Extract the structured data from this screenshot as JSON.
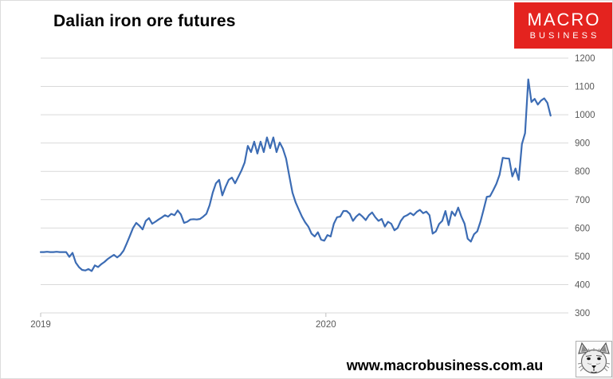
{
  "header": {
    "title": "Dalian iron ore futures"
  },
  "logo": {
    "line1": "MACRO",
    "line2": "BUSINESS"
  },
  "footer": {
    "watermark": "www.macrobusiness.com.au"
  },
  "colors": {
    "line": "#3c6cb4",
    "gridline": "#d9d9d9",
    "axis": "#bfbfbf",
    "tick_label": "#595959",
    "logo_bg": "#e4231f",
    "logo_text": "#ffffff",
    "title_text": "#000000",
    "watermark_text": "#000000"
  },
  "chart_data": {
    "type": "line",
    "title": "Dalian iron ore futures",
    "xlabel": "",
    "ylabel": "",
    "ylim": [
      300,
      1200
    ],
    "y_ticks": [
      1200,
      1100,
      1000,
      900,
      800,
      700,
      600,
      500,
      400,
      300
    ],
    "grid": "horizontal",
    "legend": "none",
    "y_axis_side": "right",
    "x_axis": {
      "min": 2019.0,
      "max": 2020.85,
      "ticks": [
        {
          "label": "2019",
          "year": 2019.0
        },
        {
          "label": "2020",
          "year": 2020.0
        }
      ]
    },
    "series": [
      {
        "name": "Dalian iron ore futures",
        "x_start": 2019.0,
        "x_step_years": 0.011173,
        "values": [
          515,
          515,
          516,
          515,
          515,
          516,
          515,
          515,
          515,
          498,
          512,
          478,
          462,
          452,
          450,
          455,
          448,
          468,
          462,
          472,
          480,
          490,
          498,
          505,
          496,
          505,
          520,
          545,
          572,
          600,
          618,
          608,
          595,
          625,
          635,
          615,
          622,
          630,
          637,
          645,
          640,
          650,
          645,
          662,
          648,
          618,
          622,
          630,
          631,
          630,
          632,
          640,
          650,
          680,
          725,
          758,
          770,
          715,
          745,
          770,
          778,
          758,
          780,
          803,
          831,
          890,
          868,
          905,
          863,
          905,
          868,
          920,
          882,
          920,
          868,
          902,
          880,
          845,
          784,
          725,
          691,
          665,
          640,
          620,
          605,
          580,
          570,
          585,
          559,
          555,
          575,
          570,
          615,
          638,
          640,
          660,
          660,
          650,
          625,
          640,
          650,
          640,
          628,
          645,
          655,
          638,
          625,
          632,
          605,
          622,
          615,
          592,
          600,
          625,
          640,
          645,
          653,
          645,
          657,
          664,
          652,
          658,
          645,
          580,
          588,
          614,
          625,
          660,
          610,
          658,
          643,
          672,
          640,
          615,
          562,
          552,
          578,
          588,
          622,
          665,
          710,
          712,
          733,
          756,
          788,
          848,
          846,
          845,
          782,
          810,
          770,
          896,
          935,
          1125,
          1045,
          1056,
          1036,
          1050,
          1058,
          1042,
          997
        ]
      }
    ]
  }
}
